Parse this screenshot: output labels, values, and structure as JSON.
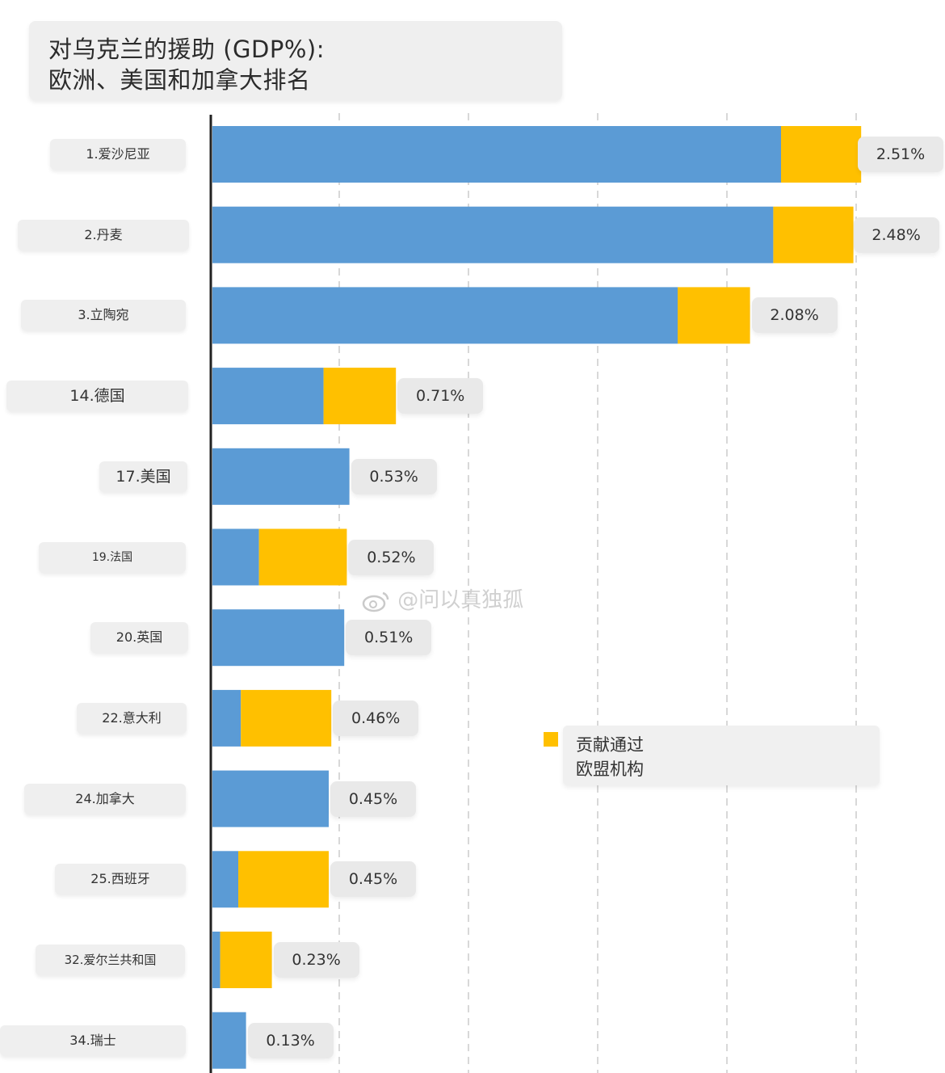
{
  "title": {
    "line1": "对乌克兰的援助 (GDP%):",
    "line2": "欧洲、美国和加拿大排名"
  },
  "colors": {
    "direct": "#5B9BD5",
    "eu": "#FFC000"
  },
  "legend": {
    "line1": "贡献通过",
    "line2": "欧盟机构"
  },
  "watermark": "@问以真独孤",
  "chart_data": {
    "type": "bar",
    "orientation": "horizontal",
    "stacked": true,
    "categories": [
      "1.爱沙尼亚",
      "2.丹麦",
      "3.立陶宛",
      "14.德国",
      "17.美国",
      "19.法国",
      "20.英国",
      "22.意大利",
      "24.加拿大",
      "25.西班牙",
      "32.爱尔兰共和国",
      "34.瑞士"
    ],
    "series": [
      {
        "values": [
          2.2,
          2.17,
          1.8,
          0.43,
          0.53,
          0.18,
          0.51,
          0.11,
          0.45,
          0.1,
          0.03,
          0.13
        ]
      },
      {
        "name": "贡献通过欧盟机构",
        "values": [
          0.31,
          0.31,
          0.28,
          0.28,
          0,
          0.34,
          0,
          0.35,
          0,
          0.35,
          0.2,
          0
        ]
      }
    ],
    "value_labels": [
      "2.51%",
      "2.48%",
      "2.08%",
      "0.71%",
      "0.53%",
      "0.52%",
      "0.51%",
      "0.46%",
      "0.45%",
      "0.45%",
      "0.23%",
      "0.13%"
    ],
    "xlim": [
      0,
      2.5
    ],
    "gridlines": [
      0.5,
      1.0,
      1.5,
      2.0,
      2.5
    ],
    "grid": true,
    "legend_position": "middle-right"
  }
}
